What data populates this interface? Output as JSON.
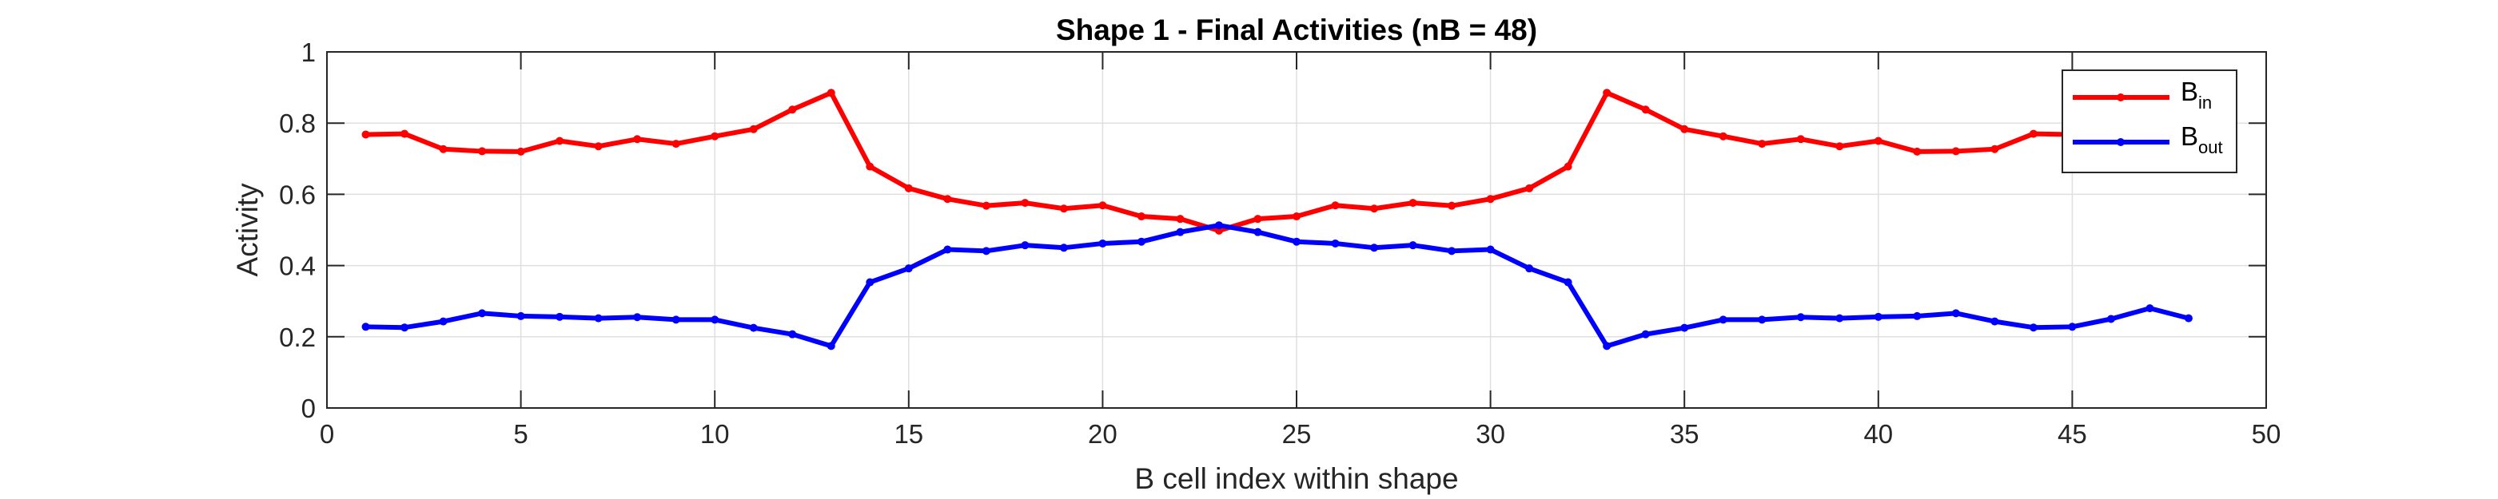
{
  "chart_data": {
    "type": "line",
    "title": "Shape 1 - Final Activities (nB = 48)",
    "xlabel": "B cell index within shape",
    "ylabel": "Activity",
    "xlim": [
      0,
      50
    ],
    "ylim": [
      0,
      1
    ],
    "xticks": [
      0,
      5,
      10,
      15,
      20,
      25,
      30,
      35,
      40,
      45,
      50
    ],
    "yticks": [
      0,
      0.2,
      0.4,
      0.6,
      0.8,
      1
    ],
    "xtick_labels": [
      "0",
      "5",
      "10",
      "15",
      "20",
      "25",
      "30",
      "35",
      "40",
      "45",
      "50"
    ],
    "ytick_labels": [
      "0",
      "0.2",
      "0.4",
      "0.6",
      "0.8",
      "1"
    ],
    "grid": true,
    "legend_position": "top-right",
    "x": [
      1,
      2,
      3,
      4,
      5,
      6,
      7,
      8,
      9,
      10,
      11,
      12,
      13,
      14,
      15,
      16,
      17,
      18,
      19,
      20,
      21,
      22,
      23,
      24,
      25,
      26,
      27,
      28,
      29,
      30,
      31,
      32,
      33,
      34,
      35,
      36,
      37,
      38,
      39,
      40,
      41,
      42,
      43,
      44,
      45,
      46,
      47,
      48
    ],
    "series": [
      {
        "name": "B",
        "name_sub": "in",
        "color": "#ff0000",
        "values": [
          0.768,
          0.77,
          0.727,
          0.721,
          0.72,
          0.75,
          0.735,
          0.755,
          0.742,
          0.763,
          0.783,
          0.838,
          0.885,
          0.678,
          0.617,
          0.587,
          0.568,
          0.576,
          0.56,
          0.569,
          0.538,
          0.531,
          0.498,
          0.531,
          0.538,
          0.569,
          0.56,
          0.576,
          0.568,
          0.587,
          0.617,
          0.678,
          0.885,
          0.838,
          0.783,
          0.763,
          0.742,
          0.755,
          0.735,
          0.75,
          0.72,
          0.721,
          0.727,
          0.77,
          0.768,
          0.776,
          0.772,
          0.765
        ]
      },
      {
        "name": "B",
        "name_sub": "out",
        "color": "#0000ff",
        "values": [
          0.228,
          0.226,
          0.243,
          0.266,
          0.258,
          0.256,
          0.252,
          0.255,
          0.248,
          0.248,
          0.225,
          0.207,
          0.174,
          0.353,
          0.392,
          0.445,
          0.441,
          0.457,
          0.45,
          0.462,
          0.467,
          0.494,
          0.513,
          0.494,
          0.467,
          0.462,
          0.45,
          0.457,
          0.441,
          0.445,
          0.392,
          0.353,
          0.174,
          0.207,
          0.225,
          0.248,
          0.248,
          0.255,
          0.252,
          0.256,
          0.258,
          0.266,
          0.243,
          0.226,
          0.228,
          0.25,
          0.28,
          0.252
        ]
      }
    ]
  }
}
